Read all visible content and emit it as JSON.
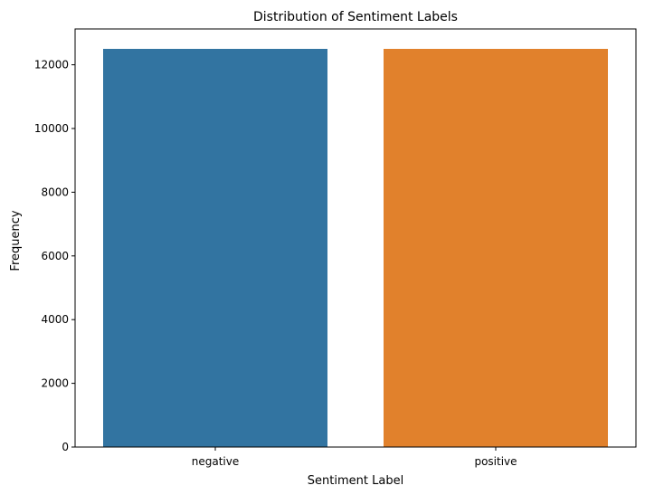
{
  "chart_data": {
    "type": "bar",
    "title": "Distribution of Sentiment Labels",
    "xlabel": "Sentiment Label",
    "ylabel": "Frequency",
    "categories": [
      "negative",
      "positive"
    ],
    "values": [
      12500,
      12500
    ],
    "colors": [
      "#3274a1",
      "#e1812c"
    ],
    "ylim": [
      0,
      13125
    ],
    "yticks": [
      0,
      2000,
      4000,
      6000,
      8000,
      10000,
      12000
    ],
    "grid": false,
    "legend": "none"
  }
}
